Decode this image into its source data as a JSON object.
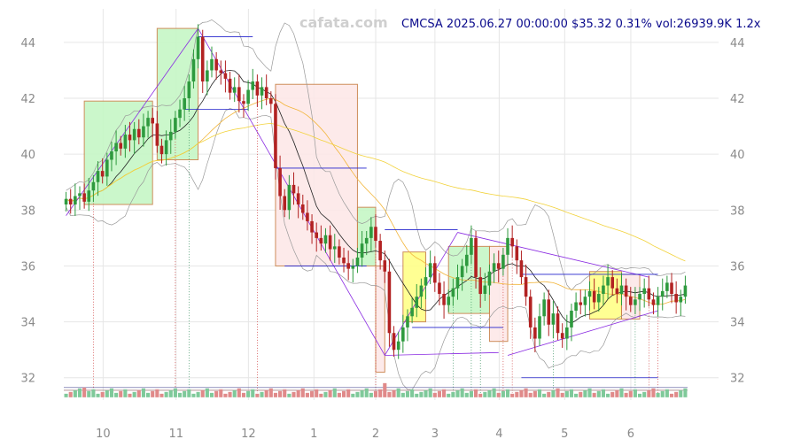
{
  "watermark": "cafata.com",
  "header": {
    "quote": "CMCSA 2025.06.27 00:00:00 $35.32 0.31% vol:26939.9K 1.2x"
  },
  "chart_data": {
    "type": "candlestick",
    "symbol": "CMCSA",
    "ylim": [
      31.2,
      45.2
    ],
    "yticks": [
      32,
      34,
      36,
      38,
      40,
      42,
      44
    ],
    "xticks": [
      {
        "label": "10",
        "t": 0.063
      },
      {
        "label": "11",
        "t": 0.18
      },
      {
        "label": "12",
        "t": 0.296
      },
      {
        "label": "1",
        "t": 0.401
      },
      {
        "label": "2",
        "t": 0.5
      },
      {
        "label": "3",
        "t": 0.595
      },
      {
        "label": "4",
        "t": 0.698
      },
      {
        "label": "5",
        "t": 0.803
      },
      {
        "label": "6",
        "t": 0.909
      }
    ],
    "series": [
      {
        "values": [
          38.4,
          38.2,
          38.5,
          38.6,
          38.3,
          38.7,
          39.0,
          39.4,
          39.2,
          39.8,
          40.1,
          40.4,
          40.2,
          40.7,
          40.5,
          40.9,
          40.6,
          41.0,
          41.3,
          41.1,
          40.3,
          40.0,
          40.5,
          40.8,
          41.3,
          41.6,
          42.0,
          42.6,
          43.4,
          44.2,
          42.6,
          43.0,
          43.4,
          43.0,
          42.9,
          42.7,
          42.2,
          42.4,
          41.9,
          41.8,
          42.3,
          42.6,
          42.1,
          42.4,
          42.0,
          41.8,
          39.5,
          38.5,
          38.0,
          38.9,
          38.6,
          38.2,
          37.9,
          37.6,
          37.2,
          37.0,
          36.8,
          37.1,
          36.6,
          36.7,
          36.3,
          36.1,
          35.9,
          36.0,
          36.3,
          36.8,
          37.0,
          37.4,
          36.9,
          36.2,
          35.8,
          33.6,
          33.0,
          33.3,
          33.8,
          34.2,
          34.5,
          34.9,
          35.3,
          35.6,
          36.1,
          35.4,
          35.0,
          34.6,
          34.9,
          35.2,
          35.6,
          36.0,
          36.4,
          37.0,
          35.6,
          35.0,
          35.3,
          35.8,
          36.1,
          35.9,
          36.4,
          37.0,
          36.7,
          36.2,
          35.6,
          34.9,
          33.8,
          33.4,
          34.2,
          34.8,
          33.9,
          34.3,
          33.6,
          33.4,
          33.8,
          34.4,
          34.7,
          34.6,
          34.9,
          35.1,
          34.7,
          35.0,
          35.3,
          35.6,
          35.2,
          35.0,
          35.3,
          34.9,
          34.6,
          34.8,
          35.0,
          35.2,
          34.8,
          34.6,
          34.9,
          35.1,
          35.4,
          35.0,
          34.7,
          34.9,
          35.3
        ]
      }
    ],
    "volume_baseline": 31.3
  }
}
